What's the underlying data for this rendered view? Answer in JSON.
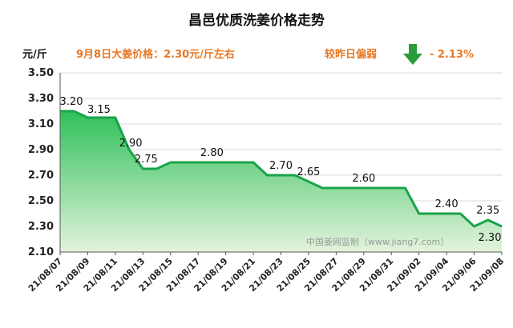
{
  "header": {
    "unit": "元/斤",
    "price_note": "9月8日大姜价格：2.30元/斤左右",
    "compare_label": "较昨日偏弱",
    "change_value": "- 2.13%",
    "arrow_color": "#2a9d3a",
    "accent_color": "#e87722"
  },
  "watermark": "中国姜网监制（www.jiang7.com）",
  "chart_data": {
    "type": "area",
    "title": "昌邑优质洗姜价格走势",
    "line_color": "#1aa34a",
    "ylim": [
      2.1,
      3.5
    ],
    "yticks": [
      "2.10",
      "2.30",
      "2.50",
      "2.70",
      "2.90",
      "3.10",
      "3.30",
      "3.50"
    ],
    "xlim": [
      "21/08/07",
      "21/09/08"
    ],
    "xticks": [
      "21/08/07",
      "21/08/09",
      "21/08/11",
      "21/08/13",
      "21/08/15",
      "21/08/17",
      "21/08/19",
      "21/08/21",
      "21/08/23",
      "21/08/25",
      "21/08/27",
      "21/08/29",
      "21/08/31",
      "21/09/02",
      "21/09/04",
      "21/09/06",
      "21/09/08"
    ],
    "grid": true,
    "points": [
      {
        "x": "21/08/07",
        "y": 3.2
      },
      {
        "x": "21/08/08",
        "y": 3.2
      },
      {
        "x": "21/08/09",
        "y": 3.15
      },
      {
        "x": "21/08/11",
        "y": 3.15
      },
      {
        "x": "21/08/12",
        "y": 2.9
      },
      {
        "x": "21/08/13",
        "y": 2.75
      },
      {
        "x": "21/08/14",
        "y": 2.75
      },
      {
        "x": "21/08/15",
        "y": 2.8
      },
      {
        "x": "21/08/21",
        "y": 2.8
      },
      {
        "x": "21/08/22",
        "y": 2.7
      },
      {
        "x": "21/08/24",
        "y": 2.7
      },
      {
        "x": "21/08/25",
        "y": 2.65
      },
      {
        "x": "21/08/26",
        "y": 2.6
      },
      {
        "x": "21/09/01",
        "y": 2.6
      },
      {
        "x": "21/09/02",
        "y": 2.4
      },
      {
        "x": "21/09/05",
        "y": 2.4
      },
      {
        "x": "21/09/06",
        "y": 2.3
      },
      {
        "x": "21/09/07",
        "y": 2.35
      },
      {
        "x": "21/09/08",
        "y": 2.3
      }
    ],
    "data_labels": [
      {
        "x": "21/08/07",
        "y": 3.2,
        "text": "3.20"
      },
      {
        "x": "21/08/09",
        "y": 3.15,
        "text": "3.15"
      },
      {
        "x": "21/08/12",
        "y": 2.9,
        "text": "2.90"
      },
      {
        "x": "21/08/13",
        "y": 2.75,
        "text": "2.75"
      },
      {
        "x": "21/08/18",
        "y": 2.8,
        "text": "2.80"
      },
      {
        "x": "21/08/23",
        "y": 2.7,
        "text": "2.70"
      },
      {
        "x": "21/08/25",
        "y": 2.65,
        "text": "2.65"
      },
      {
        "x": "21/08/29",
        "y": 2.6,
        "text": "2.60"
      },
      {
        "x": "21/09/04",
        "y": 2.4,
        "text": "2.40"
      },
      {
        "x": "21/09/07",
        "y": 2.35,
        "text": "2.35"
      },
      {
        "x": "21/09/08",
        "y": 2.3,
        "text": "2.30"
      }
    ]
  }
}
